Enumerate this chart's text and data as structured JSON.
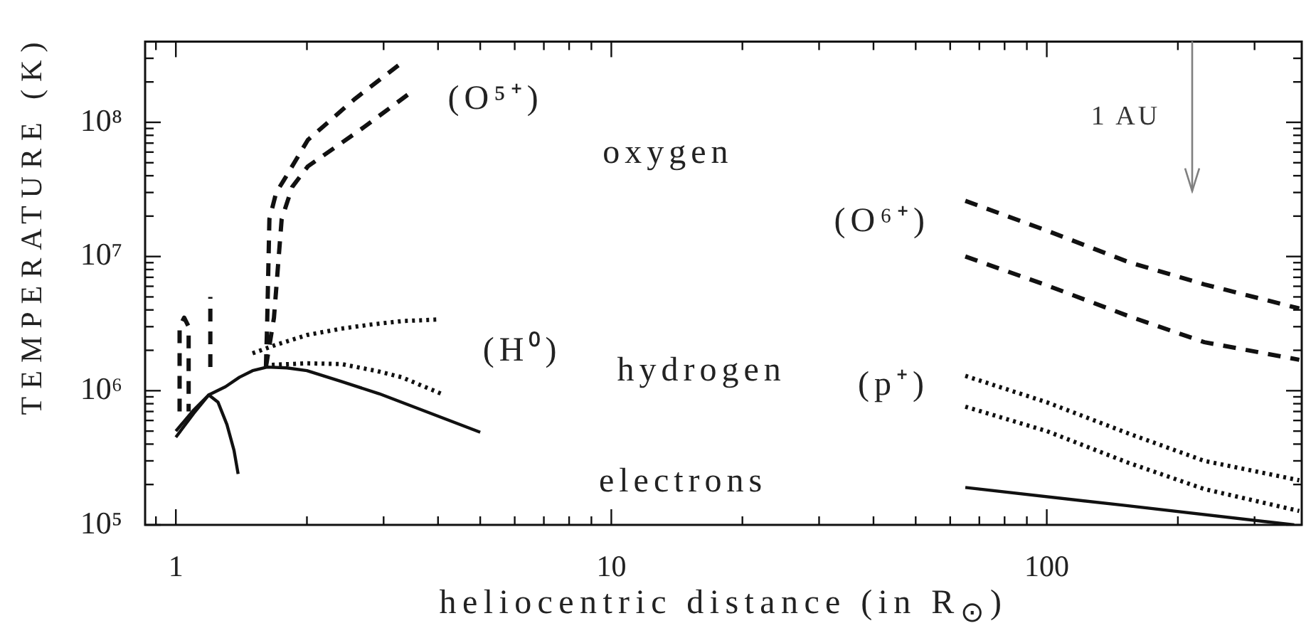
{
  "chart_data": {
    "type": "line",
    "log": "xy",
    "marker": "none",
    "xlabel": "heliocentric distance (in R$_{⊙}$)",
    "ylabel": "TEMPERATURE (K)",
    "xlim": [
      0.85,
      385
    ],
    "ylim": [
      100000.0,
      400000000.0
    ],
    "xticks": [
      {
        "value": 0.9,
        "label": null
      },
      1,
      {
        "value": 2,
        "label": null
      },
      {
        "value": 3,
        "label": null
      },
      {
        "value": 4,
        "label": null
      },
      {
        "value": 5,
        "label": null
      },
      {
        "value": 6,
        "label": null
      },
      {
        "value": 7,
        "label": null
      },
      {
        "value": 8,
        "label": null
      },
      {
        "value": 9,
        "label": null
      },
      10,
      {
        "value": 20,
        "label": null
      },
      {
        "value": 30,
        "label": null
      },
      {
        "value": 40,
        "label": null
      },
      {
        "value": 50,
        "label": null
      },
      {
        "value": 60,
        "label": null
      },
      {
        "value": 70,
        "label": null
      },
      {
        "value": 80,
        "label": null
      },
      {
        "value": 90,
        "label": null
      },
      100,
      {
        "value": 200,
        "label": null
      },
      {
        "value": 300,
        "label": null
      }
    ],
    "yticks": [
      {
        "value": 100000.0,
        "label": "10⁵"
      },
      {
        "value": 200000.0,
        "label": null
      },
      {
        "value": 300000.0,
        "label": null
      },
      {
        "value": 400000.0,
        "label": null
      },
      {
        "value": 500000.0,
        "label": null
      },
      {
        "value": 600000.0,
        "label": null
      },
      {
        "value": 700000.0,
        "label": null
      },
      {
        "value": 800000.0,
        "label": null
      },
      {
        "value": 900000.0,
        "label": null
      },
      {
        "value": 1000000.0,
        "label": "10⁶"
      },
      {
        "value": 2000000.0,
        "label": null
      },
      {
        "value": 3000000.0,
        "label": null
      },
      {
        "value": 4000000.0,
        "label": null
      },
      {
        "value": 5000000.0,
        "label": null
      },
      {
        "value": 6000000.0,
        "label": null
      },
      {
        "value": 7000000.0,
        "label": null
      },
      {
        "value": 8000000.0,
        "label": null
      },
      {
        "value": 9000000.0,
        "label": null
      },
      {
        "value": 10000000.0,
        "label": "10⁷"
      },
      {
        "value": 20000000.0,
        "label": null
      },
      {
        "value": 30000000.0,
        "label": null
      },
      {
        "value": 40000000.0,
        "label": null
      },
      {
        "value": 50000000.0,
        "label": null
      },
      {
        "value": 60000000.0,
        "label": null
      },
      {
        "value": 70000000.0,
        "label": null
      },
      {
        "value": 80000000.0,
        "label": null
      },
      {
        "value": 90000000.0,
        "label": null
      },
      {
        "value": 100000000.0,
        "label": "10⁸"
      },
      {
        "value": 200000000.0,
        "label": null
      },
      {
        "value": 300000000.0,
        "label": null
      }
    ],
    "series": [
      {
        "color": "#111111",
        "line_style": "solid",
        "x": [
          1.0,
          1.1,
          1.19,
          1.3,
          1.4,
          1.5,
          1.62,
          1.8,
          2.0,
          2.4,
          2.93,
          5.0
        ],
        "values": [
          450000.0,
          680000.0,
          930000.0,
          1070000.0,
          1260000.0,
          1410000.0,
          1500000.0,
          1480000.0,
          1410000.0,
          1170000.0,
          950000.0,
          490000.0
        ]
      },
      {
        "color": "#111111",
        "line_style": "solid",
        "x": [
          1.0,
          1.1,
          1.19,
          1.25,
          1.31,
          1.36,
          1.39
        ],
        "values": [
          500000.0,
          720000.0,
          930000.0,
          820000.0,
          560000.0,
          360000.0,
          240000.0
        ]
      },
      {
        "color": "#111111",
        "line_style": "solid",
        "x": [
          65,
          150,
          370
        ],
        "values": [
          190000.0,
          140000.0,
          100000.0
        ]
      },
      {
        "color": "#111111",
        "line_style": "dotted",
        "x": [
          1.5,
          1.7,
          2.0,
          2.4,
          2.78,
          3.3,
          4.05
        ],
        "values": [
          1900000.0,
          2200000.0,
          2600000.0,
          2900000.0,
          3100000.0,
          3300000.0,
          3400000.0
        ]
      },
      {
        "color": "#111111",
        "line_style": "dotted",
        "x": [
          1.6,
          2.0,
          2.4,
          2.9,
          3.3,
          4.1
        ],
        "values": [
          1550000.0,
          1600000.0,
          1580000.0,
          1400000.0,
          1260000.0,
          940000.0
        ]
      },
      {
        "color": "#111111",
        "line_style": "dotted",
        "x": [
          65,
          100,
          154,
          230,
          380
        ],
        "values": [
          1290000.0,
          820000.0,
          480000.0,
          300000.0,
          215000.0
        ]
      },
      {
        "color": "#111111",
        "line_style": "dotted",
        "x": [
          65,
          100,
          154,
          230,
          380
        ],
        "values": [
          760000.0,
          500000.0,
          290000.0,
          185000.0,
          127000.0
        ]
      },
      {
        "color": "#111111",
        "line_style": "dashed",
        "x": [
          1.61,
          1.62,
          1.64,
          1.7,
          1.77,
          2.01,
          2.58,
          3.31
        ],
        "values": [
          1500000.0,
          3000000.0,
          19000000.0,
          30000000.0,
          37000000.0,
          74000000.0,
          150000000.0,
          280000000.0
        ]
      },
      {
        "color": "#111111",
        "line_style": "dashed",
        "x": [
          1.61,
          1.68,
          1.75,
          1.85,
          2.01,
          2.64,
          3.49
        ],
        "values": [
          1500000.0,
          3500000.0,
          19000000.0,
          33000000.0,
          47000000.0,
          87000000.0,
          170000000.0
        ]
      },
      {
        "color": "#111111",
        "line_style": "dashed",
        "x": [
          1.02,
          1.02,
          1.045,
          1.07,
          1.07
        ],
        "values": [
          700000.0,
          3000000.0,
          3500000.0,
          3000000.0,
          700000.0
        ]
      },
      {
        "color": "#111111",
        "line_style": "dashed",
        "x": [
          1.2,
          1.2
        ],
        "values": [
          1500000.0,
          5000000.0
        ]
      },
      {
        "color": "#111111",
        "line_style": "dashed",
        "x": [
          65,
          100,
          154,
          230,
          380
        ],
        "values": [
          26000000.0,
          15600000.0,
          9100000.0,
          6200000.0,
          4100000.0
        ]
      },
      {
        "color": "#111111",
        "line_style": "dashed",
        "x": [
          65,
          100,
          154,
          230,
          380
        ],
        "values": [
          10000000.0,
          6100000.0,
          3600000.0,
          2300000.0,
          1700000.0
        ]
      }
    ],
    "annotations": [
      "(O⁵⁺)",
      "oxygen",
      "(O⁶⁺)",
      "(H⁰)",
      "hydrogen",
      "(p⁺)",
      "electrons"
    ],
    "ref_lines": [
      {
        "axis": "x",
        "value": 215,
        "label": "1 AU",
        "color": "#808080",
        "line_style": "solid"
      }
    ]
  }
}
